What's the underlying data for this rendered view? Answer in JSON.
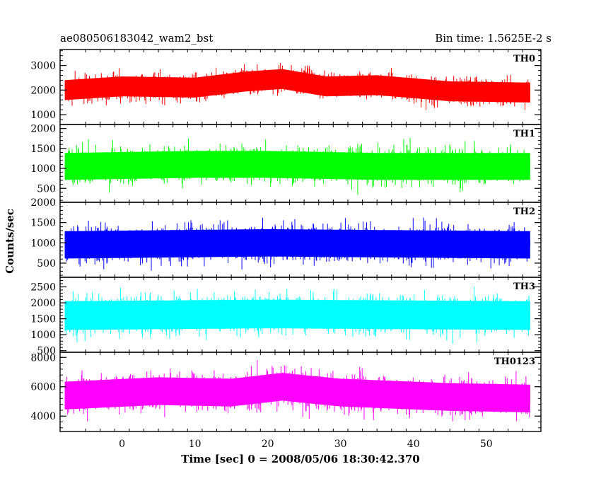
{
  "header": {
    "title": "ae080506183042_wam2_bst",
    "bin_time": "Bin time: 1.5625E-2 s"
  },
  "chart_data": {
    "type": "line",
    "title": "ae080506183042_wam2_bst",
    "subtitle": "Bin time: 1.5625E-2 s",
    "xlabel": "Time [sec] 0 = 2008/05/06 18:30:42.370",
    "ylabel": "Counts/sec",
    "xlim": [
      -8.5,
      57.5
    ],
    "data_x_range": [
      -7.8,
      56
    ],
    "x_ticks": [
      0,
      10,
      20,
      30,
      40,
      50
    ],
    "x_tick_labels": [
      "0",
      "10",
      "20",
      "30",
      "40",
      "50"
    ],
    "grid": false,
    "legend": "none",
    "panels": [
      {
        "name": "TH0",
        "color": "#ff0000",
        "ylim": [
          600,
          3650
        ],
        "y_ticks": [
          1000,
          2000,
          3000
        ],
        "y_tick_labels": [
          "1000",
          "2000",
          "3000"
        ],
        "mean_profile": [
          {
            "x": -7.8,
            "y": 2000
          },
          {
            "x": 0,
            "y": 2150
          },
          {
            "x": 10,
            "y": 2100
          },
          {
            "x": 17,
            "y": 2350
          },
          {
            "x": 22,
            "y": 2450
          },
          {
            "x": 28,
            "y": 2150
          },
          {
            "x": 35,
            "y": 2200
          },
          {
            "x": 45,
            "y": 1950
          },
          {
            "x": 56,
            "y": 1900
          }
        ],
        "noise_amplitude": 900
      },
      {
        "name": "TH1",
        "color": "#00ff00",
        "ylim": [
          150,
          2100
        ],
        "y_ticks": [
          500,
          1000,
          1500,
          2000
        ],
        "y_tick_labels": [
          "500",
          "1000",
          "1500",
          "2000"
        ],
        "mean_profile": [
          {
            "x": -7.8,
            "y": 1050
          },
          {
            "x": 10,
            "y": 1100
          },
          {
            "x": 20,
            "y": 1100
          },
          {
            "x": 35,
            "y": 1050
          },
          {
            "x": 56,
            "y": 1050
          }
        ],
        "noise_amplitude": 750
      },
      {
        "name": "TH2",
        "color": "#0000ff",
        "ylim": [
          150,
          2000
        ],
        "y_ticks": [
          500,
          1000,
          1500,
          2000
        ],
        "y_tick_labels": [
          "500",
          "1000",
          "1500",
          "2000"
        ],
        "mean_profile": [
          {
            "x": -7.8,
            "y": 950
          },
          {
            "x": 20,
            "y": 1000
          },
          {
            "x": 56,
            "y": 950
          }
        ],
        "noise_amplitude": 750
      },
      {
        "name": "TH3",
        "color": "#00ffff",
        "ylim": [
          450,
          2800
        ],
        "y_ticks": [
          500,
          1000,
          1500,
          2000,
          2500
        ],
        "y_tick_labels": [
          "500",
          "1000",
          "1500",
          "2000",
          "2500"
        ],
        "mean_profile": [
          {
            "x": -7.8,
            "y": 1600
          },
          {
            "x": 20,
            "y": 1650
          },
          {
            "x": 56,
            "y": 1600
          }
        ],
        "noise_amplitude": 1000
      },
      {
        "name": "TH0123",
        "color": "#ff00ff",
        "ylim": [
          2950,
          8350
        ],
        "y_ticks": [
          4000,
          6000,
          8000
        ],
        "y_tick_labels": [
          "4000",
          "6000",
          "8000"
        ],
        "mean_profile": [
          {
            "x": -7.8,
            "y": 5400
          },
          {
            "x": 5,
            "y": 5700
          },
          {
            "x": 15,
            "y": 5600
          },
          {
            "x": 22,
            "y": 6000
          },
          {
            "x": 30,
            "y": 5600
          },
          {
            "x": 45,
            "y": 5300
          },
          {
            "x": 56,
            "y": 5200
          }
        ],
        "noise_amplitude": 2100
      }
    ]
  }
}
